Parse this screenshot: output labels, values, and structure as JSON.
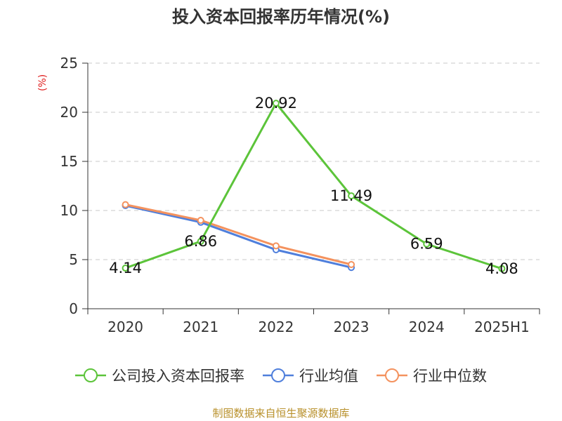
{
  "chart_data": {
    "type": "line",
    "title": "投入资本回报率历年情况(%)",
    "ylabel": "(%)",
    "categories": [
      "2020",
      "2021",
      "2022",
      "2023",
      "2024",
      "2025H1"
    ],
    "ylim": [
      0,
      25
    ],
    "yticks": [
      0,
      5,
      10,
      15,
      20,
      25
    ],
    "grid": true,
    "legend_position": "bottom",
    "series": [
      {
        "name": "公司投入资本回报率",
        "color": "#5cc43a",
        "values": [
          4.14,
          6.86,
          20.92,
          11.49,
          6.59,
          4.08
        ],
        "labels": [
          "4.14",
          "6.86",
          "20.92",
          "11.49",
          "6.59",
          "4.08"
        ]
      },
      {
        "name": "行业均值",
        "color": "#4f7fdc",
        "values": [
          10.5,
          8.8,
          6.0,
          4.2,
          null,
          null
        ]
      },
      {
        "name": "行业中位数",
        "color": "#f4925e",
        "values": [
          10.6,
          9.0,
          6.4,
          4.5,
          null,
          null
        ]
      }
    ],
    "source": "制图数据来自恒生聚源数据库"
  }
}
